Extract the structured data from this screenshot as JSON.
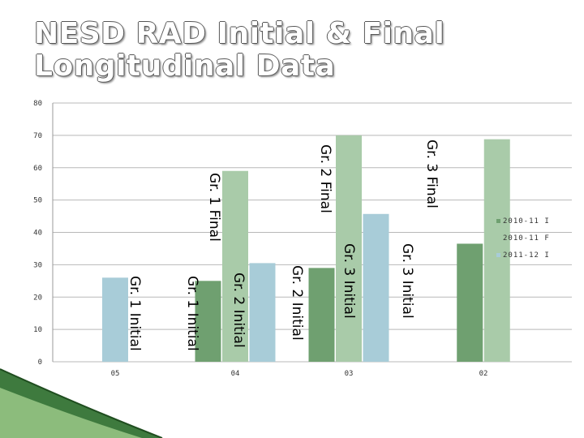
{
  "chart_data": {
    "type": "bar",
    "title_lines": [
      "NESD RAD Initial & Final",
      "Longitudinal Data"
    ],
    "categories": [
      "05",
      "04",
      "03",
      "02"
    ],
    "ylim": [
      0,
      80
    ],
    "yticks": [
      "0",
      "10",
      "20",
      "30",
      "40",
      "50",
      "60",
      "70",
      "80"
    ],
    "grid": true,
    "legend_position": "right",
    "series": [
      {
        "name": "2010-11 I",
        "color": "#6fa070",
        "values": [
          null,
          25,
          29,
          36.5
        ]
      },
      {
        "name": "2010-11 F",
        "color": "#a9cba9",
        "values": [
          null,
          59,
          70,
          68.8
        ]
      },
      {
        "name": "2011-12 I",
        "color": "#a8ccd8",
        "values": [
          26,
          30.5,
          45.7,
          null
        ]
      }
    ],
    "annotations": [
      "Gr. 1 Initial",
      "Gr. 1 Initial",
      "Gr. 2 Initial",
      "Gr. 1 Final",
      "Gr. 2 Initial",
      "Gr. 3 Initial",
      "Gr. 2 Final",
      "Gr. 3 Initial",
      "Gr. 3 Final"
    ]
  }
}
